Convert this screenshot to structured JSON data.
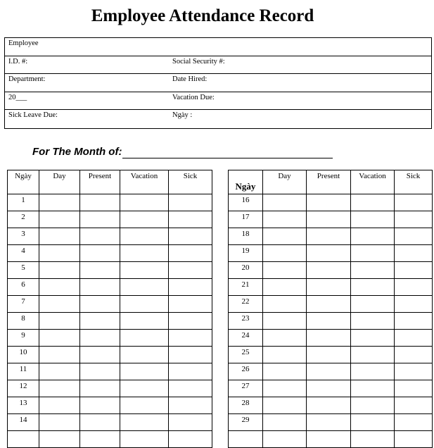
{
  "title": "Employee Attendance Record",
  "info": {
    "employee": "Employee",
    "id": "I.D. #:",
    "ssn": "Social Security #:",
    "department": "Department:",
    "date_hired": "Date Hired:",
    "year": "20___",
    "vacation_due": "Vacation Due:",
    "sick_leave_due": "Sick Leave Due:",
    "ngay": "Ngày :"
  },
  "month_label": "For The Month of:",
  "columns": [
    "Ngày",
    "Day",
    "Present",
    "Vacation",
    "Sick"
  ],
  "left_days": [
    "1",
    "2",
    "3",
    "4",
    "5",
    "6",
    "7",
    "8",
    "9",
    "10",
    "11",
    "12",
    "13",
    "14"
  ],
  "right_days": [
    "16",
    "17",
    "18",
    "19",
    "20",
    "21",
    "22",
    "23",
    "24",
    "25",
    "26",
    "27",
    "28",
    "29"
  ]
}
